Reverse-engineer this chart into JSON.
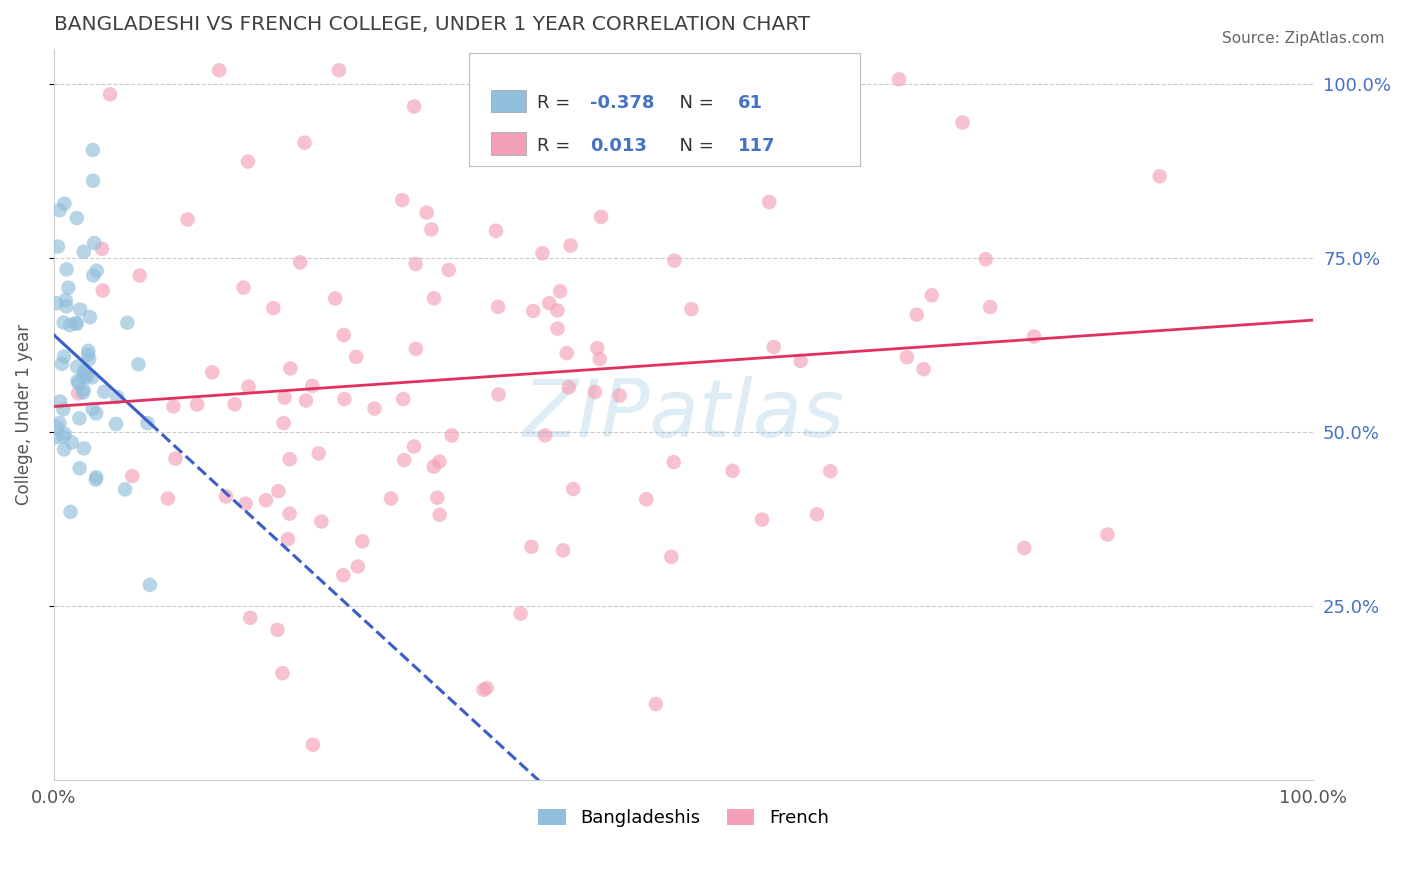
{
  "title": "BANGLADESHI VS FRENCH COLLEGE, UNDER 1 YEAR CORRELATION CHART",
  "source_text": "Source: ZipAtlas.com",
  "ylabel": "College, Under 1 year",
  "watermark": "ZIPatlas",
  "bangladeshi_color": "#92bfdb",
  "french_color": "#f4a0b8",
  "trend_bangladeshi_color": "#3a5fc8",
  "trend_french_color": "#e03060",
  "background_color": "#ffffff",
  "grid_color": "#cccccc",
  "title_color": "#404040",
  "R_bangladeshi": -0.378,
  "N_bangladeshi": 61,
  "R_french": 0.013,
  "N_french": 117,
  "right_axis_color": "#4472c4",
  "legend_R_color": "#4472c4",
  "xlim": [
    0.0,
    1.0
  ],
  "ylim": [
    0.0,
    1.05
  ],
  "seed": 12
}
